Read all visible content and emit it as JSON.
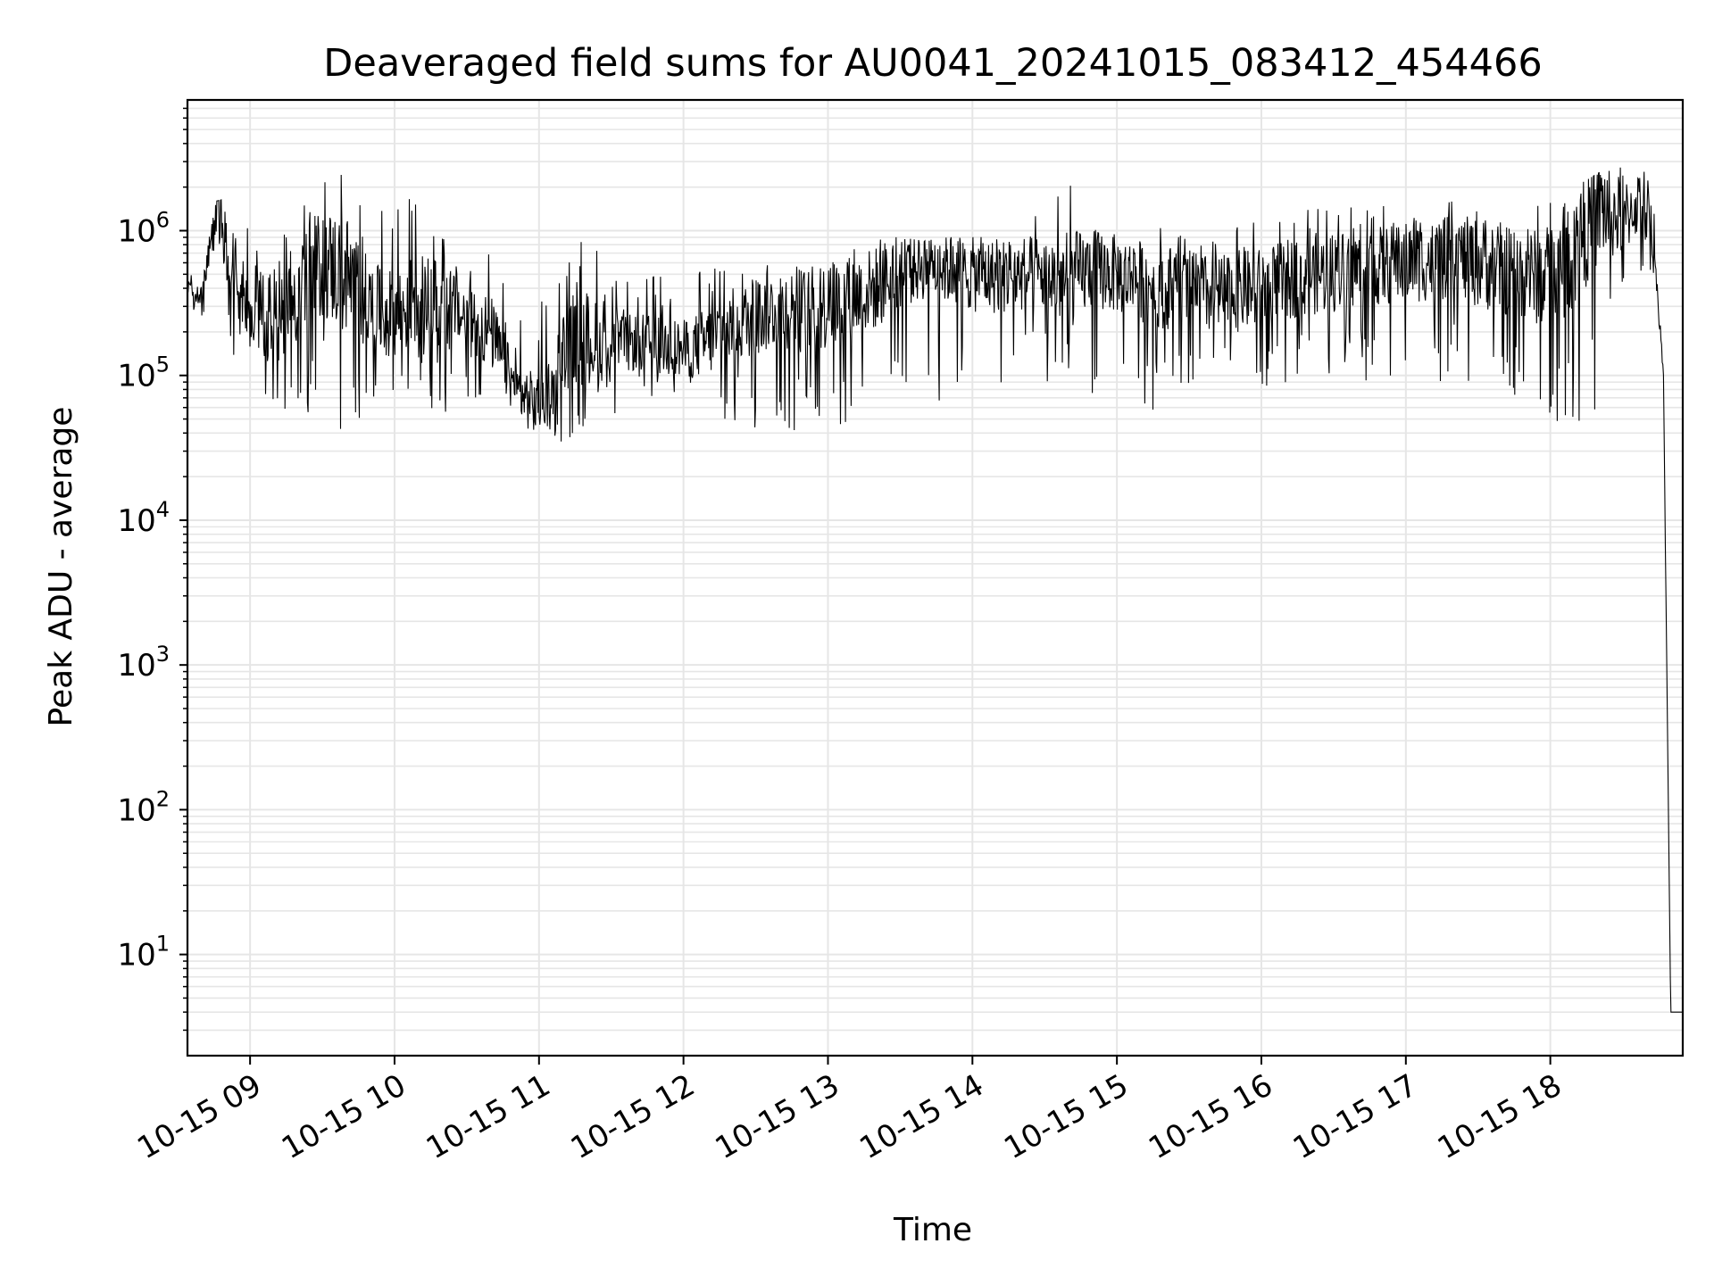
{
  "chart_data": {
    "type": "line",
    "title": "Deaveraged field sums for AU0041_20241015_083412_454466",
    "xlabel": "Time",
    "ylabel": "Peak ADU - average",
    "y_scale": "log",
    "grid": true,
    "legend": "none",
    "line_color": "#000000",
    "grid_color": "#e6e6e6",
    "xlim": [
      "10-15 08:34",
      "10-15 18:55"
    ],
    "ylim": [
      2,
      8000000
    ],
    "x_ticks": [
      "10-15 09",
      "10-15 10",
      "10-15 11",
      "10-15 12",
      "10-15 13",
      "10-15 14",
      "10-15 15",
      "10-15 16",
      "10-15 17",
      "10-15 18"
    ],
    "y_ticks": [
      {
        "base": "10",
        "exp": "1"
      },
      {
        "base": "10",
        "exp": "2"
      },
      {
        "base": "10",
        "exp": "3"
      },
      {
        "base": "10",
        "exp": "4"
      },
      {
        "base": "10",
        "exp": "5"
      },
      {
        "base": "10",
        "exp": "6"
      }
    ],
    "series": [
      {
        "x": [
          "10-15 08:34",
          "10-15 08:40",
          "10-15 08:46",
          "10-15 08:52",
          "10-15 09:00",
          "10-15 09:10",
          "10-15 09:20",
          "10-15 09:30",
          "10-15 09:40",
          "10-15 09:50",
          "10-15 10:00",
          "10-15 10:10",
          "10-15 10:20",
          "10-15 10:30",
          "10-15 10:40",
          "10-15 10:50",
          "10-15 11:00",
          "10-15 11:10",
          "10-15 11:20",
          "10-15 11:30",
          "10-15 11:40",
          "10-15 11:50",
          "10-15 12:00",
          "10-15 12:10",
          "10-15 12:20",
          "10-15 12:30",
          "10-15 12:40",
          "10-15 12:50",
          "10-15 13:00",
          "10-15 13:10",
          "10-15 13:20",
          "10-15 13:30",
          "10-15 13:40",
          "10-15 13:50",
          "10-15 14:00",
          "10-15 14:10",
          "10-15 14:20",
          "10-15 14:30",
          "10-15 14:40",
          "10-15 14:50",
          "10-15 15:00",
          "10-15 15:10",
          "10-15 15:20",
          "10-15 15:30",
          "10-15 15:40",
          "10-15 15:50",
          "10-15 16:00",
          "10-15 16:10",
          "10-15 16:20",
          "10-15 16:30",
          "10-15 16:40",
          "10-15 16:50",
          "10-15 17:00",
          "10-15 17:10",
          "10-15 17:20",
          "10-15 17:30",
          "10-15 17:40",
          "10-15 17:50",
          "10-15 18:00",
          "10-15 18:10",
          "10-15 18:20",
          "10-15 18:30",
          "10-15 18:40",
          "10-15 18:44",
          "10-15 18:47",
          "10-15 18:50",
          "10-15 18:55"
        ],
        "y": [
          400000,
          350000,
          1400000,
          600000,
          300000,
          250000,
          400000,
          600000,
          500000,
          300000,
          250000,
          350000,
          300000,
          250000,
          200000,
          80000,
          60000,
          150000,
          180000,
          150000,
          170000,
          160000,
          150000,
          170000,
          220000,
          250000,
          300000,
          280000,
          300000,
          350000,
          400000,
          550000,
          600000,
          550000,
          500000,
          480000,
          500000,
          500000,
          450000,
          550000,
          500000,
          450000,
          400000,
          380000,
          350000,
          380000,
          400000,
          450000,
          500000,
          520000,
          550000,
          570000,
          600000,
          620000,
          650000,
          600000,
          550000,
          500000,
          450000,
          700000,
          1500000,
          1200000,
          1800000,
          500000,
          100000,
          4,
          4
        ],
        "envelope_min": [
          300000,
          250000,
          200000,
          100000,
          80000,
          60000,
          40000,
          60000,
          30000,
          70000,
          80000,
          60000,
          50000,
          60000,
          50000,
          40000,
          35000,
          30000,
          40000,
          50000,
          60000,
          55000,
          60000,
          50000,
          45000,
          40000,
          40000,
          35000,
          35000,
          40000,
          45000,
          50000,
          60000,
          70000,
          60000,
          70000,
          80000,
          90000,
          80000,
          70000,
          60000,
          55000,
          60000,
          60000,
          65000,
          70000,
          75000,
          80000,
          80000,
          80000,
          90000,
          90000,
          90000,
          90000,
          80000,
          70000,
          60000,
          60000,
          50000,
          40000,
          40000,
          200000,
          500000,
          400000,
          80000,
          4,
          4
        ],
        "envelope_max": [
          500000,
          500000,
          1600000,
          1700000,
          1600000,
          2000000,
          2200000,
          2900000,
          2500000,
          1500000,
          2200000,
          1500000,
          1200000,
          900000,
          700000,
          300000,
          350000,
          500000,
          1200000,
          500000,
          450000,
          500000,
          500000,
          600000,
          650000,
          600000,
          700000,
          750000,
          800000,
          850000,
          900000,
          900000,
          850000,
          900000,
          900000,
          1000000,
          1200000,
          1500000,
          2700000,
          1200000,
          1000000,
          1000000,
          1100000,
          1100000,
          1200000,
          1300000,
          1300000,
          1400000,
          1450000,
          1500000,
          1500000,
          1550000,
          1600000,
          1600000,
          1650000,
          1700000,
          1600000,
          1650000,
          1700000,
          2000000,
          2500000,
          3000000,
          3800000,
          1000000,
          100000,
          4,
          4
        ]
      }
    ]
  }
}
